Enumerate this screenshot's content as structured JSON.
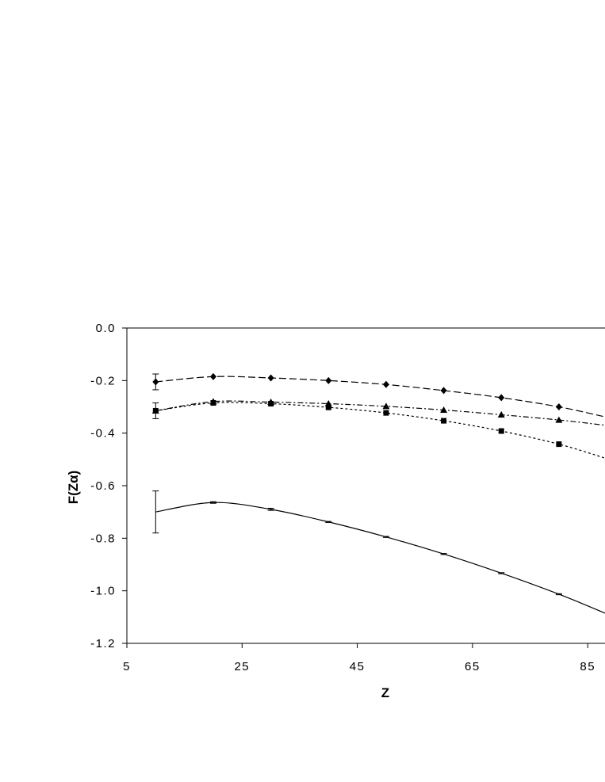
{
  "chart_data": {
    "type": "line",
    "title": "",
    "xlabel": "Z",
    "ylabel": "F(Zα)",
    "xlim": [
      5,
      88
    ],
    "ylim": [
      -1.2,
      0.0
    ],
    "x_ticks": [
      5,
      25,
      45,
      65,
      85
    ],
    "x_tick_labels": [
      "5",
      "25",
      "45",
      "65",
      "85"
    ],
    "y_ticks": [
      0.0,
      -0.2,
      -0.4,
      -0.6,
      -0.8,
      -1.0,
      -1.2
    ],
    "y_tick_labels": [
      "0.0",
      "-0.2",
      "-0.4",
      "-0.6",
      "-0.8",
      "-1.0",
      "-1.2"
    ],
    "grid": false,
    "legend": "none",
    "series": [
      {
        "marker": "diamond",
        "dash": "long-dash",
        "x": [
          10,
          20,
          30,
          40,
          50,
          60,
          70,
          80,
          88
        ],
        "y": [
          -0.205,
          -0.185,
          -0.19,
          -0.2,
          -0.215,
          -0.238,
          -0.265,
          -0.3,
          -0.338
        ],
        "error_bars": [
          {
            "x": 10,
            "low": -0.235,
            "high": -0.175
          }
        ]
      },
      {
        "marker": "triangle",
        "dash": "dash-dot",
        "x": [
          10,
          20,
          30,
          40,
          50,
          60,
          70,
          80,
          88
        ],
        "y": [
          -0.315,
          -0.28,
          -0.282,
          -0.288,
          -0.298,
          -0.312,
          -0.33,
          -0.35,
          -0.37
        ],
        "error_bars": [
          {
            "x": 10,
            "low": -0.345,
            "high": -0.285
          }
        ]
      },
      {
        "marker": "square",
        "dash": "dotted",
        "x": [
          10,
          20,
          30,
          40,
          50,
          60,
          70,
          80,
          88
        ],
        "y": [
          -0.315,
          -0.285,
          -0.288,
          -0.302,
          -0.323,
          -0.353,
          -0.392,
          -0.442,
          -0.495
        ],
        "error_bars": []
      },
      {
        "marker": "none",
        "dash": "solid",
        "x": [
          10,
          20,
          30,
          40,
          50,
          60,
          70,
          80,
          88
        ],
        "y": [
          -0.7,
          -0.664,
          -0.69,
          -0.738,
          -0.795,
          -0.86,
          -0.933,
          -1.013,
          -1.085
        ],
        "error_bars": [
          {
            "x": 10,
            "low": -0.78,
            "high": -0.62
          },
          {
            "x": 20,
            "low": -0.667,
            "high": -0.661
          },
          {
            "x": 30,
            "low": -0.694,
            "high": -0.686
          },
          {
            "x": 40,
            "low": -0.74,
            "high": -0.736
          },
          {
            "x": 50,
            "low": -0.797,
            "high": -0.793
          },
          {
            "x": 60,
            "low": -0.862,
            "high": -0.858
          },
          {
            "x": 70,
            "low": -0.935,
            "high": -0.931
          },
          {
            "x": 80,
            "low": -1.015,
            "high": -1.011
          }
        ]
      }
    ]
  }
}
